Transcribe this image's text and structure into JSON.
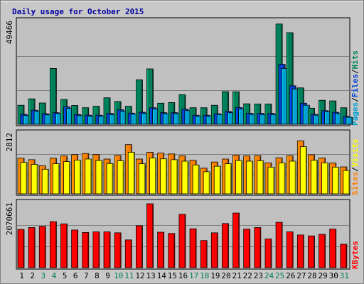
{
  "chart_data": {
    "type": "bar",
    "title": "Daily usage for October 2015",
    "categories": [
      "1",
      "2",
      "3",
      "4",
      "5",
      "6",
      "7",
      "8",
      "9",
      "10",
      "11",
      "12",
      "13",
      "14",
      "15",
      "16",
      "17",
      "18",
      "19",
      "20",
      "21",
      "22",
      "23",
      "24",
      "25",
      "26",
      "27",
      "28",
      "29",
      "30",
      "31"
    ],
    "weekend_days": [
      "3",
      "4",
      "10",
      "11",
      "17",
      "18",
      "24",
      "25",
      "31"
    ],
    "panels": [
      {
        "label_parts": [
          "Pages",
          "Files",
          "Hits"
        ],
        "label_colors": [
          "#00a0d0",
          "#0040d0",
          "#00805a"
        ],
        "ymax_label": "49466",
        "ymax": 49466,
        "series": [
          {
            "name": "Hits",
            "color": "#00805a",
            "values": [
              9200,
              12300,
              10300,
              27000,
              12000,
              9100,
              8000,
              8700,
              12800,
              11000,
              8700,
              21500,
              26800,
              10200,
              10500,
              14300,
              8000,
              8000,
              9200,
              15800,
              15700,
              9900,
              9800,
              9800,
              48500,
              44300,
              17600,
              7800,
              11600,
              11300,
              8000
            ]
          },
          {
            "name": "Files",
            "color": "#0040d0",
            "values": [
              4800,
              6800,
              5100,
              5600,
              8400,
              4700,
              4400,
              4400,
              5300,
              7000,
              5400,
              5800,
              8000,
              5600,
              5600,
              7300,
              4400,
              4400,
              5100,
              6200,
              8100,
              5300,
              5300,
              5300,
              29000,
              18600,
              10200,
              4800,
              6600,
              5800,
              3800
            ]
          },
          {
            "name": "Pages",
            "color": "#00a0d0",
            "values": [
              4300,
              6300,
              4600,
              5100,
              7700,
              4200,
              3900,
              3900,
              4700,
              6300,
              4900,
              5300,
              7400,
              5100,
              5100,
              6600,
              3900,
              3900,
              4700,
              5600,
              7400,
              4800,
              4700,
              4700,
              27000,
              17100,
              9200,
              4400,
              6100,
              5200,
              3400
            ]
          }
        ]
      },
      {
        "label_parts": [
          "Sites",
          "Visits"
        ],
        "label_colors": [
          "#ff8000",
          "#ffff00"
        ],
        "ymax_label": "2812",
        "ymax": 2812,
        "series": [
          {
            "name": "Visits",
            "color": "#ff8000",
            "values": [
              1680,
              1610,
              1320,
              1680,
              1790,
              1850,
              1900,
              1850,
              1640,
              1810,
              2320,
              1640,
              1960,
              1920,
              1880,
              1790,
              1580,
              1210,
              1500,
              1640,
              1820,
              1790,
              1800,
              1460,
              1700,
              1800,
              2500,
              1840,
              1690,
              1450,
              1270
            ]
          },
          {
            "name": "Sites",
            "color": "#ffff00",
            "values": [
              1480,
              1390,
              1160,
              1420,
              1520,
              1590,
              1640,
              1570,
              1430,
              1560,
              1960,
              1420,
              1690,
              1650,
              1610,
              1540,
              1360,
              1040,
              1300,
              1420,
              1570,
              1540,
              1560,
              1260,
              1460,
              1540,
              2220,
              1580,
              1460,
              1260,
              1100
            ]
          }
        ]
      },
      {
        "label_parts": [
          "KBytes"
        ],
        "label_colors": [
          "#ff0000"
        ],
        "ymax_label": "2070661",
        "ymax": 2070661,
        "series": [
          {
            "name": "KBytes",
            "color": "#ff0000",
            "values": [
              1240000,
              1300000,
              1340000,
              1490000,
              1420000,
              1220000,
              1140000,
              1160000,
              1160000,
              1130000,
              900000,
              1360000,
              2070000,
              1150000,
              1110000,
              1730000,
              1260000,
              880000,
              1130000,
              1430000,
              1770000,
              1250000,
              1300000,
              930000,
              1470000,
              1160000,
              1060000,
              1030000,
              1080000,
              1250000,
              760000
            ]
          }
        ]
      }
    ]
  }
}
